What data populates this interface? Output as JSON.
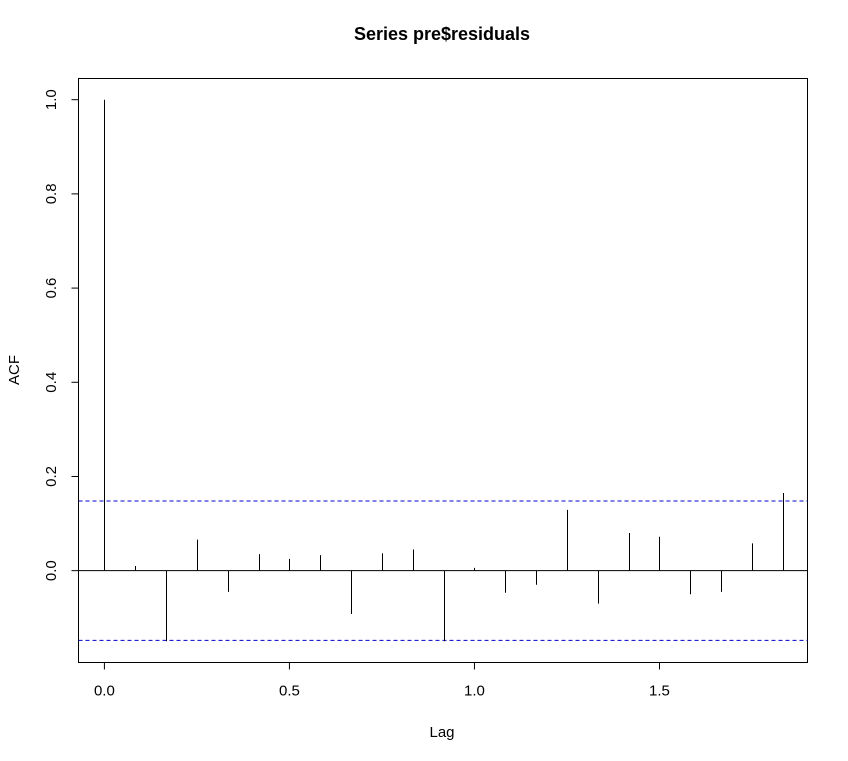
{
  "chart_data": {
    "type": "bar",
    "title": "Series  pre$residuals",
    "xlabel": "Lag",
    "ylabel": "ACF",
    "xlim": [
      -0.07,
      1.9
    ],
    "ylim": [
      -0.195,
      1.045
    ],
    "x_ticks": [
      "0.0",
      "0.5",
      "1.0",
      "1.5"
    ],
    "y_ticks": [
      "0.0",
      "0.2",
      "0.4",
      "0.6",
      "0.8",
      "1.0"
    ],
    "x_tick_values": [
      0.0,
      0.5,
      1.0,
      1.5
    ],
    "y_tick_values": [
      0.0,
      0.2,
      0.4,
      0.6,
      0.8,
      1.0
    ],
    "series": [
      {
        "x": [
          0.0,
          0.0833,
          0.1667,
          0.25,
          0.3333,
          0.4167,
          0.5,
          0.5833,
          0.6667,
          0.75,
          0.8333,
          0.9167,
          1.0,
          1.0833,
          1.1667,
          1.25,
          1.3333,
          1.4167,
          1.5,
          1.5833,
          1.6667,
          1.75,
          1.8333
        ],
        "values": [
          1.0,
          0.01,
          -0.15,
          0.066,
          -0.045,
          0.035,
          0.025,
          0.033,
          -0.092,
          0.037,
          0.045,
          -0.15,
          0.006,
          -0.047,
          -0.03,
          0.129,
          -0.07,
          0.08,
          0.072,
          -0.05,
          -0.045,
          0.058,
          0.165
        ]
      }
    ],
    "confidence_limit": 0.148,
    "colors": {
      "bars": "#000000",
      "ci": "#0000cc",
      "zero_line": "#000000"
    },
    "grid": false
  }
}
